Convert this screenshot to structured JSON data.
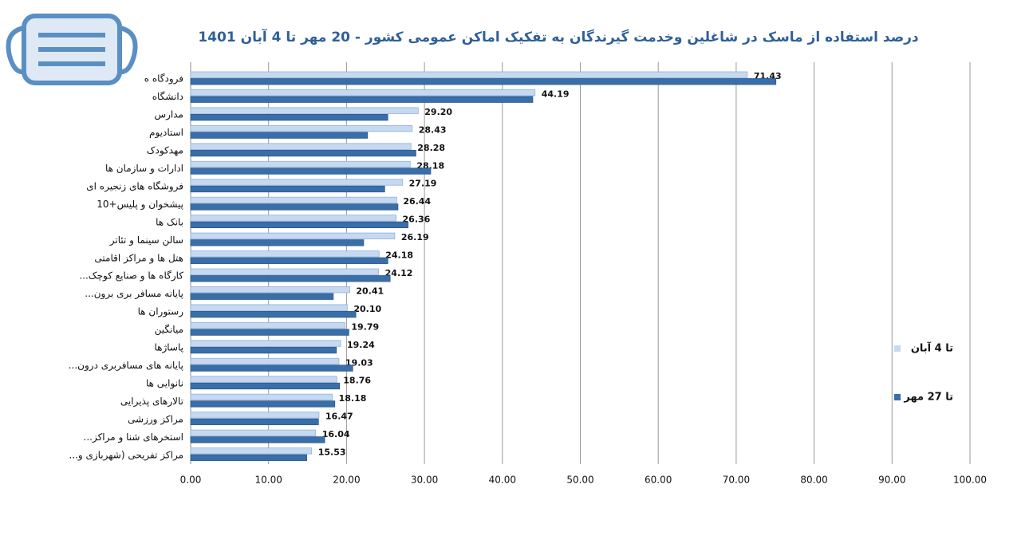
{
  "chart_data": {
    "type": "hbar",
    "title": "درصد استفاده از ماسک در شاغلین وخدمت گیرندگان به تفکیک اماکن عمومی کشور - 20 مهر تا 4 آبان 1401",
    "categories": [
      "فرودگاه ه",
      "دانشگاه",
      "مدارس",
      "استادیوم",
      "مهدکودک",
      "ادارات و سازمان ها",
      "فروشگاه های زنجیره ای",
      "پیشخوان و پلیس+10",
      "بانک ها",
      "سالن سینما و تئاتر",
      "هتل ها و مراکز اقامتی",
      "کارگاه ها و صنایع کوچک...",
      "پایانه مسافر بری برون...",
      "رستوران ها",
      "میانگین",
      "پاساژها",
      "پایانه های مسافربری درون...",
      "نانوایی ها",
      "تالارهای پذیرایی",
      "مراکز ورزشی",
      "استخرهای شنا و مراکز...",
      "مراکز تفریحی (شهربازی و..."
    ],
    "series": [
      {
        "name": "تا 4 آبان",
        "color": "#c6d9f1",
        "values": [
          71.43,
          44.19,
          29.2,
          28.43,
          28.28,
          28.18,
          27.19,
          26.44,
          26.36,
          26.19,
          24.18,
          24.12,
          20.41,
          20.1,
          19.79,
          19.24,
          19.03,
          18.76,
          18.18,
          16.47,
          16.04,
          15.53
        ],
        "value_labels": [
          "71.43",
          "44.19",
          "29.20",
          "28.43",
          "28.28",
          "28.18",
          "27.19",
          "26.44",
          "26.36",
          "26.19",
          "24.18",
          "24.12",
          "20.41",
          "20.10",
          "19.79",
          "19.24",
          "19.03",
          "18.76",
          "18.18",
          "16.47",
          "16.04",
          "15.53"
        ]
      },
      {
        "name": "تا 27 مهر",
        "color": "#3a6ea8",
        "values": [
          75.1,
          43.9,
          25.3,
          22.7,
          28.9,
          30.8,
          24.9,
          26.6,
          27.9,
          22.2,
          25.3,
          25.6,
          18.3,
          21.2,
          20.3,
          18.7,
          20.8,
          19.1,
          18.5,
          16.4,
          17.2,
          14.9
        ]
      }
    ],
    "xlim": [
      0,
      100
    ],
    "xticks": [
      {
        "value": 0,
        "label": "0.00"
      },
      {
        "value": 10,
        "label": "10.00"
      },
      {
        "value": 20,
        "label": "20.00"
      },
      {
        "value": 30,
        "label": "30.00"
      },
      {
        "value": 40,
        "label": "40.00"
      },
      {
        "value": 50,
        "label": "50.00"
      },
      {
        "value": 60,
        "label": "60.00"
      },
      {
        "value": 70,
        "label": "70.00"
      },
      {
        "value": 80,
        "label": "80.00"
      },
      {
        "value": 90,
        "label": "90.00"
      },
      {
        "value": 100,
        "label": "100.00"
      }
    ],
    "grid": true
  }
}
